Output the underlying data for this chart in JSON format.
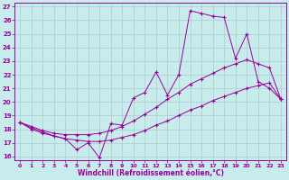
{
  "xlabel": "Windchill (Refroidissement éolien,°C)",
  "background_color": "#c8ecec",
  "line_color": "#990099",
  "grid_color": "#aacccc",
  "xlim": [
    -0.5,
    23.5
  ],
  "ylim": [
    15.7,
    27.3
  ],
  "yticks": [
    16,
    17,
    18,
    19,
    20,
    21,
    22,
    23,
    24,
    25,
    26,
    27
  ],
  "xticks": [
    0,
    1,
    2,
    3,
    4,
    5,
    6,
    7,
    8,
    9,
    10,
    11,
    12,
    13,
    14,
    15,
    16,
    17,
    18,
    19,
    20,
    21,
    22,
    23
  ],
  "line1_x": [
    0,
    1,
    2,
    3,
    4,
    5,
    6,
    7,
    8,
    9,
    10,
    11,
    12,
    13,
    14,
    15,
    16,
    17,
    18,
    19,
    20,
    21,
    22,
    23
  ],
  "line1_y": [
    18.5,
    18.0,
    17.7,
    17.5,
    17.3,
    16.5,
    17.0,
    15.9,
    18.4,
    18.3,
    20.3,
    20.7,
    22.2,
    20.5,
    22.0,
    26.7,
    26.5,
    26.3,
    26.2,
    23.2,
    25.0,
    21.5,
    21.0,
    20.2
  ],
  "line2_x": [
    0,
    1,
    2,
    3,
    4,
    5,
    6,
    7,
    8,
    9,
    10,
    11,
    12,
    13,
    14,
    15,
    16,
    17,
    18,
    19,
    20,
    21,
    22,
    23
  ],
  "line2_y": [
    18.5,
    18.2,
    17.9,
    17.7,
    17.6,
    17.6,
    17.6,
    17.7,
    17.9,
    18.2,
    18.6,
    19.1,
    19.6,
    20.2,
    20.7,
    21.3,
    21.7,
    22.1,
    22.5,
    22.8,
    23.1,
    22.8,
    22.5,
    20.2
  ],
  "line3_x": [
    0,
    1,
    2,
    3,
    4,
    5,
    6,
    7,
    8,
    9,
    10,
    11,
    12,
    13,
    14,
    15,
    16,
    17,
    18,
    19,
    20,
    21,
    22,
    23
  ],
  "line3_y": [
    18.5,
    18.1,
    17.8,
    17.5,
    17.3,
    17.2,
    17.1,
    17.1,
    17.2,
    17.4,
    17.6,
    17.9,
    18.3,
    18.6,
    19.0,
    19.4,
    19.7,
    20.1,
    20.4,
    20.7,
    21.0,
    21.2,
    21.4,
    20.2
  ]
}
